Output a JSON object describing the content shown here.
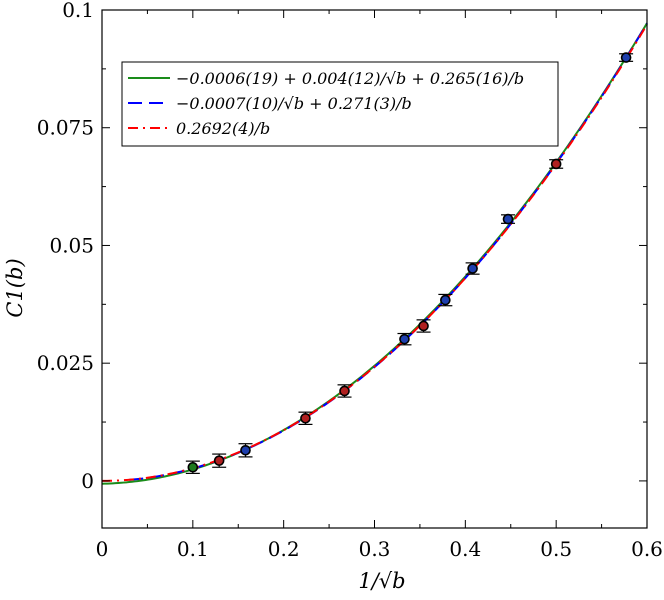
{
  "chart_data": {
    "type": "scatter",
    "title": "",
    "xlabel": "1/√b",
    "ylabel": "C1(b)",
    "xlim": [
      0,
      0.6
    ],
    "ylim": [
      -0.01,
      0.1
    ],
    "x_ticks": [
      0,
      0.1,
      0.2,
      0.3,
      0.4,
      0.5,
      0.6
    ],
    "x_tick_labels": [
      "0",
      "0.1",
      "0.2",
      "0.3",
      "0.4",
      "0.5",
      "0.6"
    ],
    "y_ticks": [
      0,
      0.025,
      0.05,
      0.075,
      0.1
    ],
    "y_tick_labels": [
      "0",
      "0.025",
      "0.05",
      "0.075",
      "0.1"
    ],
    "grid": false,
    "legend_position": "top-left",
    "series": [
      {
        "name": "−0.0006(19) + 0.004(12)/√b + 0.265(16)/b",
        "kind": "line",
        "style": "solid",
        "color": "#1a8c1a",
        "coeffs": [
          -0.0006,
          0.004,
          0.265
        ],
        "x_range": [
          0,
          0.6
        ]
      },
      {
        "name": "−0.0007(10)/√b + 0.271(3)/b",
        "kind": "line",
        "style": "dashed",
        "color": "#0000ff",
        "coeffs": [
          0,
          -0.0007,
          0.271
        ],
        "x_range": [
          0.03,
          0.6
        ]
      },
      {
        "name": "0.2692(4)/b",
        "kind": "line",
        "style": "dashdot",
        "color": "#ff0000",
        "coeffs": [
          0,
          0,
          0.2692
        ],
        "x_range": [
          0,
          0.6
        ]
      }
    ],
    "points": [
      {
        "x": 0.1,
        "y": 0.0029,
        "err": 0.0013,
        "color": "#1e7a1e"
      },
      {
        "x": 0.129,
        "y": 0.0043,
        "err": 0.0014,
        "color": "#b02020"
      },
      {
        "x": 0.158,
        "y": 0.0065,
        "err": 0.0014,
        "color": "#1e3fae"
      },
      {
        "x": 0.224,
        "y": 0.0133,
        "err": 0.0013,
        "color": "#b02020"
      },
      {
        "x": 0.267,
        "y": 0.0191,
        "err": 0.0013,
        "color": "#b02020"
      },
      {
        "x": 0.333,
        "y": 0.0301,
        "err": 0.0012,
        "color": "#1e3fae"
      },
      {
        "x": 0.354,
        "y": 0.0329,
        "err": 0.0013,
        "color": "#b02020"
      },
      {
        "x": 0.378,
        "y": 0.0384,
        "err": 0.0012,
        "color": "#1e3fae"
      },
      {
        "x": 0.408,
        "y": 0.0451,
        "err": 0.0012,
        "color": "#1e3fae"
      },
      {
        "x": 0.447,
        "y": 0.0556,
        "err": 0.0009,
        "color": "#1e3fae"
      },
      {
        "x": 0.5,
        "y": 0.0673,
        "err": 0.0009,
        "color": "#b02020"
      },
      {
        "x": 0.577,
        "y": 0.0899,
        "err": 0.0008,
        "color": "#1e3fae"
      }
    ]
  }
}
